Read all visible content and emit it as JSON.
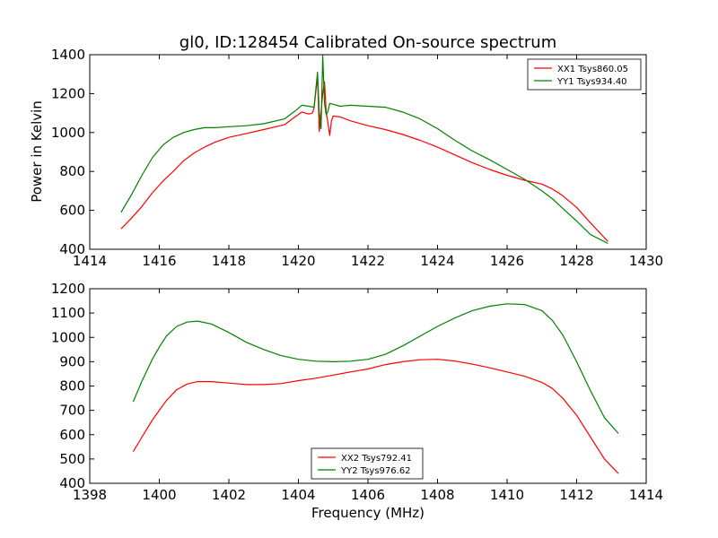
{
  "figure": {
    "title": "gl0, ID:128454 Calibrated On-source spectrum",
    "ylabel": "Power in Kelvin",
    "xlabel": "Frequency (MHz)"
  },
  "chart_data": [
    {
      "type": "line",
      "title": "gl0, ID:128454 Calibrated On-source spectrum",
      "xlabel": "",
      "ylabel": "Power in Kelvin",
      "xlim": [
        1414,
        1430
      ],
      "ylim": [
        400,
        1400
      ],
      "xticks": [
        1414,
        1416,
        1418,
        1420,
        1422,
        1424,
        1426,
        1428,
        1430
      ],
      "yticks": [
        400,
        600,
        800,
        1000,
        1200,
        1400
      ],
      "legend_position": "top-right",
      "series": [
        {
          "name": "XX1 Tsys860.05",
          "color": "#ff0000",
          "x": [
            1414.9,
            1415.2,
            1415.5,
            1415.8,
            1416.1,
            1416.4,
            1416.7,
            1417.0,
            1417.3,
            1417.6,
            1418.0,
            1418.5,
            1419.0,
            1419.6,
            1419.9,
            1420.1,
            1420.3,
            1420.4,
            1420.45,
            1420.55,
            1420.6,
            1420.7,
            1420.75,
            1420.8,
            1420.85,
            1420.9,
            1420.95,
            1421.0,
            1421.2,
            1421.5,
            1422.0,
            1422.5,
            1423.0,
            1423.5,
            1424.0,
            1424.5,
            1425.0,
            1425.5,
            1426.0,
            1426.5,
            1427.0,
            1427.3,
            1427.6,
            1428.0,
            1428.4,
            1428.9
          ],
          "y": [
            505,
            560,
            620,
            690,
            750,
            800,
            855,
            895,
            925,
            950,
            975,
            995,
            1015,
            1040,
            1080,
            1105,
            1095,
            1100,
            1125,
            1290,
            1005,
            1200,
            1260,
            1100,
            1050,
            985,
            1060,
            1085,
            1080,
            1060,
            1035,
            1015,
            990,
            960,
            925,
            885,
            845,
            810,
            780,
            755,
            735,
            710,
            675,
            615,
            535,
            440
          ]
        },
        {
          "name": "YY1 Tsys934.40",
          "color": "#008000",
          "x": [
            1414.9,
            1415.2,
            1415.5,
            1415.8,
            1416.1,
            1416.4,
            1416.7,
            1417.0,
            1417.3,
            1417.6,
            1418.0,
            1418.5,
            1419.0,
            1419.6,
            1419.9,
            1420.1,
            1420.3,
            1420.45,
            1420.55,
            1420.6,
            1420.65,
            1420.7,
            1420.75,
            1420.8,
            1420.85,
            1420.9,
            1421.0,
            1421.2,
            1421.5,
            1422.0,
            1422.5,
            1423.0,
            1423.5,
            1424.0,
            1424.5,
            1425.0,
            1425.5,
            1426.0,
            1426.5,
            1427.0,
            1427.3,
            1427.6,
            1428.0,
            1428.4,
            1428.9
          ],
          "y": [
            590,
            680,
            780,
            870,
            935,
            975,
            1000,
            1015,
            1025,
            1025,
            1030,
            1035,
            1045,
            1070,
            1110,
            1140,
            1135,
            1130,
            1310,
            1100,
            1020,
            1395,
            1150,
            1090,
            1110,
            1150,
            1145,
            1135,
            1140,
            1135,
            1130,
            1105,
            1070,
            1020,
            960,
            905,
            860,
            810,
            760,
            700,
            660,
            610,
            545,
            475,
            430
          ]
        }
      ]
    },
    {
      "type": "line",
      "title": "",
      "xlabel": "Frequency (MHz)",
      "ylabel": "",
      "xlim": [
        1398,
        1414
      ],
      "ylim": [
        400,
        1200
      ],
      "xticks": [
        1398,
        1400,
        1402,
        1404,
        1406,
        1408,
        1410,
        1412,
        1414
      ],
      "yticks": [
        400,
        500,
        600,
        700,
        800,
        900,
        1000,
        1100,
        1200
      ],
      "legend_position": "lower-center",
      "series": [
        {
          "name": "XX2 Tsys792.41",
          "color": "#ff0000",
          "x": [
            1399.25,
            1399.5,
            1399.8,
            1400.0,
            1400.2,
            1400.5,
            1400.8,
            1401.1,
            1401.5,
            1402.0,
            1402.5,
            1403.0,
            1403.5,
            1404.0,
            1404.5,
            1405.0,
            1405.5,
            1406.0,
            1406.5,
            1407.0,
            1407.5,
            1408.0,
            1408.5,
            1409.0,
            1409.5,
            1410.0,
            1410.5,
            1411.0,
            1411.3,
            1411.6,
            1412.0,
            1412.4,
            1412.8,
            1413.2
          ],
          "y": [
            530,
            590,
            660,
            700,
            740,
            785,
            808,
            818,
            818,
            812,
            806,
            806,
            810,
            822,
            832,
            845,
            858,
            870,
            888,
            900,
            908,
            910,
            903,
            890,
            875,
            858,
            840,
            815,
            790,
            750,
            680,
            590,
            500,
            440
          ]
        },
        {
          "name": "YY2 Tsys976.62",
          "color": "#008000",
          "x": [
            1399.25,
            1399.5,
            1399.8,
            1400.0,
            1400.2,
            1400.5,
            1400.8,
            1401.1,
            1401.5,
            1402.0,
            1402.5,
            1403.0,
            1403.5,
            1404.0,
            1404.5,
            1405.0,
            1405.5,
            1406.0,
            1406.5,
            1407.0,
            1407.5,
            1408.0,
            1408.5,
            1409.0,
            1409.5,
            1410.0,
            1410.5,
            1411.0,
            1411.3,
            1411.6,
            1412.0,
            1412.4,
            1412.8,
            1413.2
          ],
          "y": [
            735,
            820,
            910,
            960,
            1005,
            1045,
            1063,
            1067,
            1055,
            1020,
            980,
            950,
            925,
            910,
            902,
            900,
            902,
            910,
            930,
            965,
            1005,
            1045,
            1080,
            1110,
            1128,
            1138,
            1135,
            1110,
            1070,
            1010,
            900,
            780,
            670,
            605
          ]
        }
      ]
    }
  ]
}
